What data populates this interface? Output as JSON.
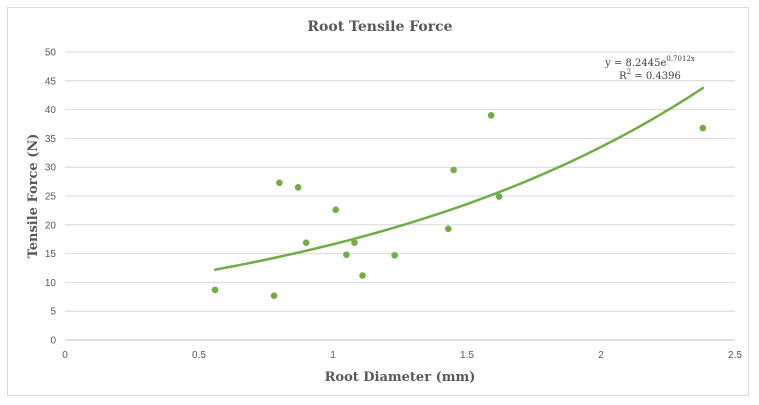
{
  "chart_data": {
    "type": "scatter",
    "title": "Root Tensile Force",
    "xlabel": "Root Diameter (mm)",
    "ylabel": "Tensile Force (N)",
    "xlim": [
      0,
      2.5
    ],
    "ylim": [
      0,
      50
    ],
    "x_ticks": [
      "0",
      "0.5",
      "1",
      "1.5",
      "2",
      "2.5"
    ],
    "y_ticks": [
      "0",
      "5",
      "10",
      "15",
      "20",
      "25",
      "30",
      "35",
      "40",
      "45",
      "50"
    ],
    "grid": true,
    "legend": "none",
    "series": [
      {
        "points": [
          {
            "x": 0.56,
            "y": 8.7
          },
          {
            "x": 0.78,
            "y": 7.7
          },
          {
            "x": 0.8,
            "y": 27.3
          },
          {
            "x": 0.87,
            "y": 26.5
          },
          {
            "x": 0.9,
            "y": 16.9
          },
          {
            "x": 1.01,
            "y": 22.6
          },
          {
            "x": 1.05,
            "y": 14.8
          },
          {
            "x": 1.08,
            "y": 16.9
          },
          {
            "x": 1.11,
            "y": 11.2
          },
          {
            "x": 1.23,
            "y": 14.7
          },
          {
            "x": 1.43,
            "y": 19.3
          },
          {
            "x": 1.45,
            "y": 29.5
          },
          {
            "x": 1.59,
            "y": 39.0
          },
          {
            "x": 1.62,
            "y": 24.9
          },
          {
            "x": 2.38,
            "y": 36.8
          }
        ]
      }
    ],
    "trendline": {
      "type": "exponential",
      "a": 8.2445,
      "b": 0.7012,
      "x_range": [
        0.56,
        2.38
      ],
      "equation_prefix": "y = 8.2445e",
      "equation_exponent": "0.7012x",
      "r2_prefix": "R",
      "r2_power": "2",
      "r2_value": " = 0.4396"
    },
    "colors": {
      "marker": "#70ad47",
      "trendline": "#70ad47",
      "gridline": "#d9d9d9",
      "axis": "#bfbfbf",
      "text": "#595959"
    }
  }
}
